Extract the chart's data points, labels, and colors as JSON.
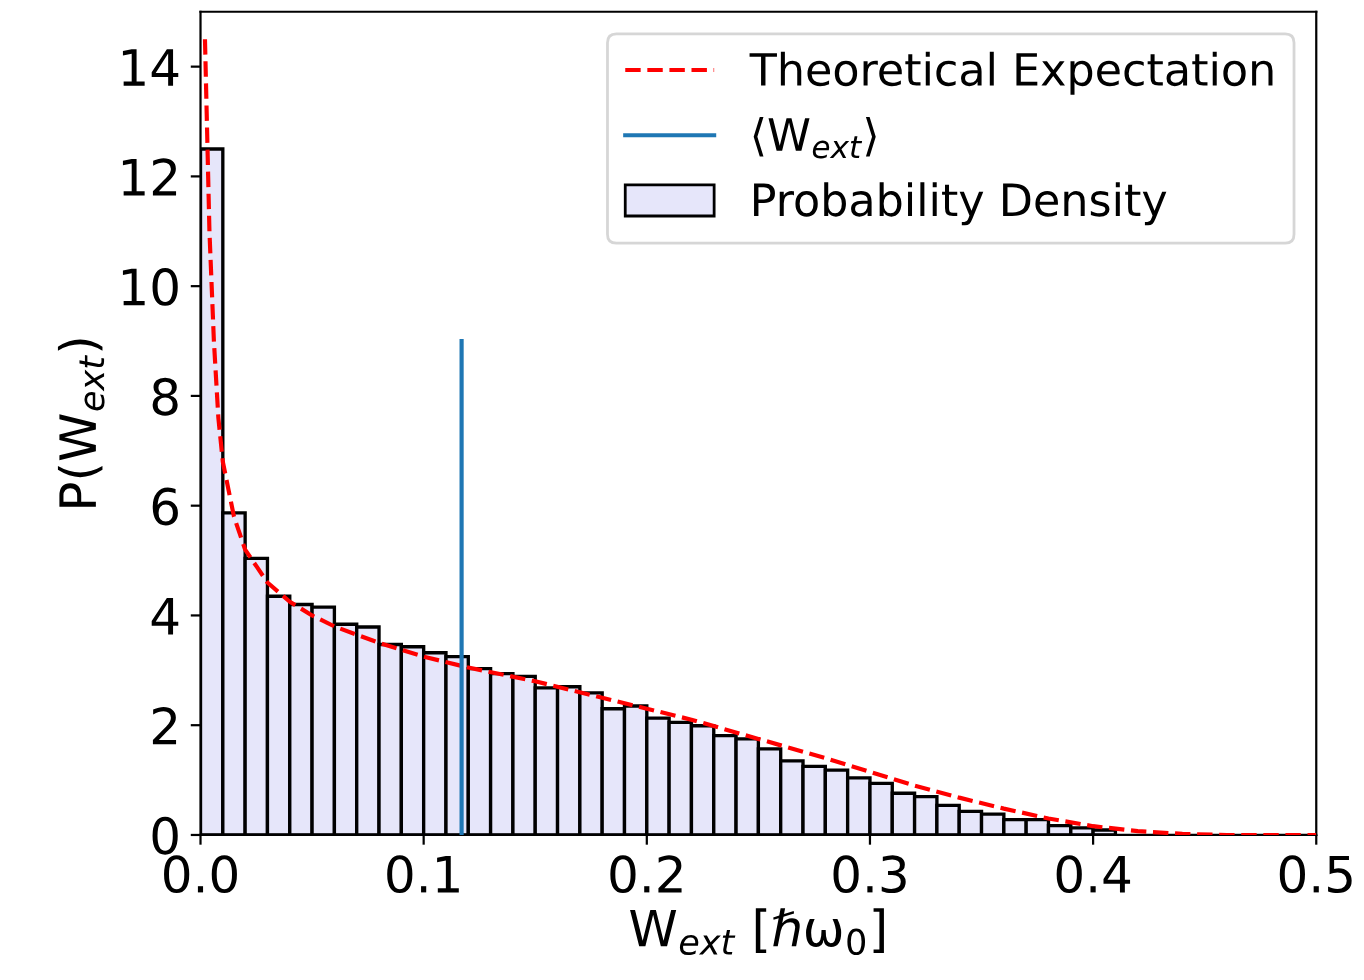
{
  "chart_data": {
    "type": "histogram",
    "xlabel": "W$_{ext}$ [ℏω$_{0}$]",
    "ylabel": "P(W$_{ext}$)",
    "legend": "top right",
    "grid": false,
    "xlim": [
      0,
      0.5
    ],
    "ylim": [
      0,
      15
    ],
    "xticks": [
      {
        "value": 0,
        "label": "0.0"
      },
      0.1,
      0.2,
      0.3,
      0.4,
      0.5
    ],
    "yticks": [
      0,
      2,
      4,
      6,
      8,
      10,
      12,
      14
    ],
    "series": [
      {
        "name": "Probability Density",
        "color": "#e6e6fa",
        "bins": [
          0,
          0.01,
          0.02,
          0.03,
          0.04,
          0.05,
          0.06,
          0.07,
          0.08,
          0.09,
          0.1,
          0.11,
          0.12,
          0.13,
          0.14,
          0.15,
          0.16,
          0.17,
          0.18,
          0.19,
          0.2,
          0.21,
          0.22,
          0.23,
          0.24,
          0.25,
          0.26,
          0.27,
          0.28,
          0.29,
          0.3,
          0.31,
          0.32,
          0.33,
          0.34,
          0.35,
          0.36,
          0.37,
          0.38,
          0.39,
          0.4,
          0.41,
          0.42,
          0.43,
          0.44
        ],
        "values": [
          12.5,
          5.87,
          5.04,
          4.35,
          4.2,
          4.15,
          3.84,
          3.79,
          3.47,
          3.43,
          3.32,
          3.25,
          3.03,
          2.94,
          2.89,
          2.68,
          2.7,
          2.59,
          2.3,
          2.35,
          2.13,
          2.05,
          1.99,
          1.81,
          1.75,
          1.57,
          1.35,
          1.25,
          1.18,
          1.04,
          0.94,
          0.76,
          0.7,
          0.54,
          0.43,
          0.38,
          0.28,
          0.28,
          0.17,
          0.13,
          0.09,
          null,
          null,
          null
        ]
      },
      {
        "type": "line",
        "name": "Theoretical Expectation",
        "color": "#ff0000",
        "line_style": "dashed",
        "x": [
          0.002,
          0.004,
          0.006,
          0.008,
          0.01,
          0.015,
          0.02,
          0.03,
          0.04,
          0.05,
          0.06,
          0.08,
          0.1,
          0.12,
          0.15,
          0.18,
          0.2,
          0.22,
          0.25,
          0.28,
          0.3,
          0.32,
          0.34,
          0.36,
          0.38,
          0.4,
          0.42,
          0.44,
          0.46,
          0.5
        ],
        "values": [
          14.5,
          11,
          9,
          7.6,
          6.8,
          5.8,
          5.2,
          4.6,
          4.25,
          4.0,
          3.8,
          3.5,
          3.25,
          3.05,
          2.8,
          2.5,
          2.3,
          2.1,
          1.75,
          1.4,
          1.15,
          0.9,
          0.68,
          0.48,
          0.3,
          0.16,
          0.07,
          0.02,
          0,
          0
        ]
      },
      {
        "type": "line",
        "name": "⟨W$_{ext}$⟩",
        "color": "#1f77b4",
        "line_style": "solid",
        "x": [
          0.117,
          0.117
        ],
        "values": [
          0,
          9
        ]
      }
    ]
  }
}
